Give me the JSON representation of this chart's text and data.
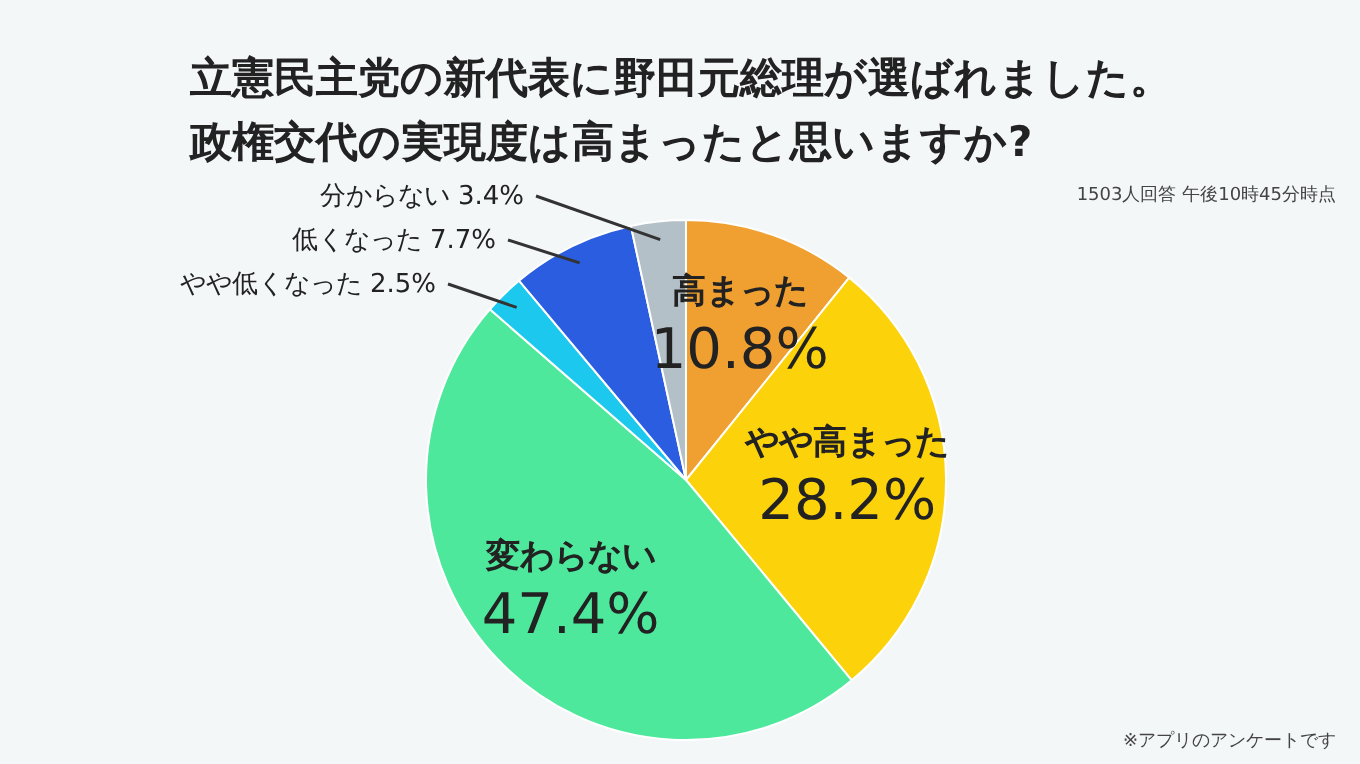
{
  "chart_data": {
    "type": "pie",
    "title": "立憲民主党の新代表に野田元総理が選ばれました。",
    "subtitle": "政権交代の実現度は高まったと思いますか?",
    "categories": [
      "高まった",
      "やや高まった",
      "変わらない",
      "やや低くなった",
      "低くなった",
      "分からない"
    ],
    "values": [
      10.8,
      28.2,
      47.4,
      2.5,
      7.7,
      3.4
    ],
    "value_labels": [
      "10.8%",
      "28.2%",
      "47.4%",
      "2.5%",
      "7.7%",
      "3.4%"
    ],
    "colors": [
      "#f0a030",
      "#fcd20a",
      "#4de89c",
      "#1cc8ee",
      "#2a5de0",
      "#b4c0c8"
    ],
    "annotations": [
      "1503人回答 午後10時45分時点",
      "※アプリのアンケートです"
    ]
  }
}
